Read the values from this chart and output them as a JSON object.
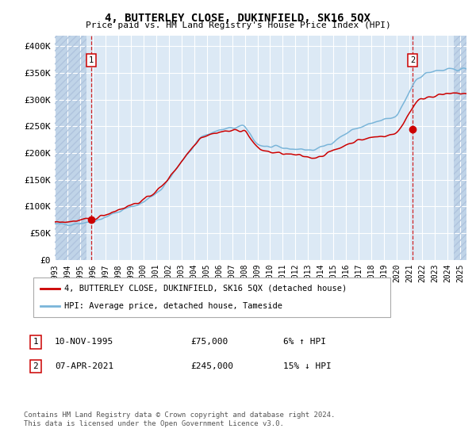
{
  "title": "4, BUTTERLEY CLOSE, DUKINFIELD, SK16 5QX",
  "subtitle": "Price paid vs. HM Land Registry's House Price Index (HPI)",
  "legend_line1": "4, BUTTERLEY CLOSE, DUKINFIELD, SK16 5QX (detached house)",
  "legend_line2": "HPI: Average price, detached house, Tameside",
  "annotation1_date": "10-NOV-1995",
  "annotation1_price": "£75,000",
  "annotation1_hpi": "6% ↑ HPI",
  "annotation2_date": "07-APR-2021",
  "annotation2_price": "£245,000",
  "annotation2_hpi": "15% ↓ HPI",
  "footer": "Contains HM Land Registry data © Crown copyright and database right 2024.\nThis data is licensed under the Open Government Licence v3.0.",
  "hpi_color": "#7ab5d9",
  "price_color": "#cc0000",
  "marker_color": "#cc0000",
  "vline_color": "#cc0000",
  "bg_color": "#dce9f5",
  "hatch_color": "#c0d4e8",
  "grid_color": "#ffffff",
  "ylim_max": 420000,
  "yticks": [
    0,
    50000,
    100000,
    150000,
    200000,
    250000,
    300000,
    350000,
    400000
  ],
  "ytick_labels": [
    "£0",
    "£50K",
    "£100K",
    "£150K",
    "£200K",
    "£250K",
    "£300K",
    "£350K",
    "£400K"
  ],
  "sale1_year": 1995.87,
  "sale1_price": 75000,
  "sale2_year": 2021.27,
  "sale2_price": 245000,
  "xmin": 1993.0,
  "xmax": 2025.5,
  "hatch_left_end": 1995.5,
  "hatch_right_start": 2024.5
}
